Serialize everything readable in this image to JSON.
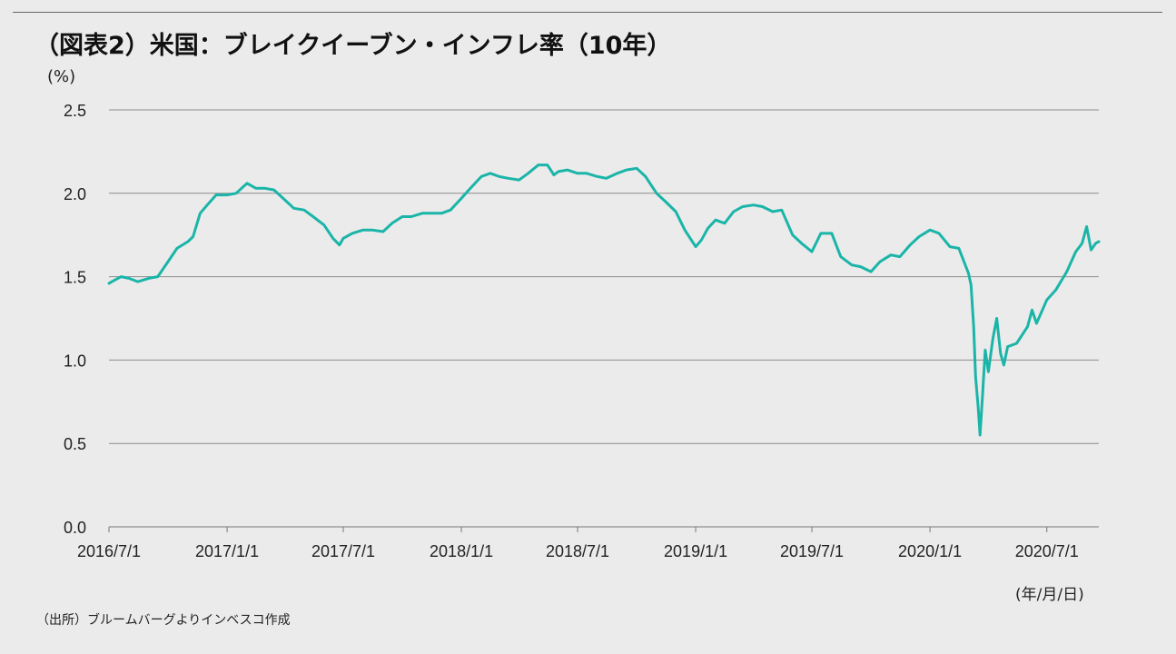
{
  "header": {
    "title": "（図表2）米国：ブレイクイーブン・インフレ率（10年）"
  },
  "footer": {
    "source": "（出所）ブルームバーグよりインベスコ作成"
  },
  "chart_data": {
    "type": "line",
    "title": "（図表2）米国：ブレイクイーブン・インフレ率（10年）",
    "ylabel": "(%)",
    "xlabel": "(年/月/日)",
    "ylim": [
      0,
      2.5
    ],
    "yticks": [
      "0.0",
      "0.5",
      "1.0",
      "1.5",
      "2.0",
      "2.5"
    ],
    "xlim": [
      "2016-07-01",
      "2020-09-20"
    ],
    "xticks": [
      {
        "label": "2016/7/1",
        "date": "2016-07-01"
      },
      {
        "label": "2017/1/1",
        "date": "2017-01-01"
      },
      {
        "label": "2017/7/1",
        "date": "2017-07-01"
      },
      {
        "label": "2018/1/1",
        "date": "2018-01-01"
      },
      {
        "label": "2018/7/1",
        "date": "2018-07-01"
      },
      {
        "label": "2019/1/1",
        "date": "2019-01-01"
      },
      {
        "label": "2019/7/1",
        "date": "2019-07-01"
      },
      {
        "label": "2020/1/1",
        "date": "2020-01-01"
      },
      {
        "label": "2020/7/1",
        "date": "2020-07-01"
      }
    ],
    "grid": true,
    "line_color": "#1ab5a8",
    "series": [
      {
        "name": "ブレイクイーブン・インフレ率（10年）",
        "points": [
          [
            "2016-07-01",
            1.46
          ],
          [
            "2016-07-10",
            1.48
          ],
          [
            "2016-07-20",
            1.5
          ],
          [
            "2016-08-01",
            1.49
          ],
          [
            "2016-08-15",
            1.47
          ],
          [
            "2016-09-01",
            1.49
          ],
          [
            "2016-09-15",
            1.5
          ],
          [
            "2016-10-01",
            1.59
          ],
          [
            "2016-10-15",
            1.67
          ],
          [
            "2016-11-01",
            1.71
          ],
          [
            "2016-11-09",
            1.74
          ],
          [
            "2016-11-20",
            1.88
          ],
          [
            "2016-12-01",
            1.93
          ],
          [
            "2016-12-15",
            1.99
          ],
          [
            "2017-01-01",
            1.99
          ],
          [
            "2017-01-15",
            2.0
          ],
          [
            "2017-02-01",
            2.06
          ],
          [
            "2017-02-15",
            2.03
          ],
          [
            "2017-03-01",
            2.03
          ],
          [
            "2017-03-15",
            2.02
          ],
          [
            "2017-04-01",
            1.96
          ],
          [
            "2017-04-15",
            1.91
          ],
          [
            "2017-05-01",
            1.9
          ],
          [
            "2017-05-15",
            1.86
          ],
          [
            "2017-06-01",
            1.81
          ],
          [
            "2017-06-15",
            1.73
          ],
          [
            "2017-06-25",
            1.69
          ],
          [
            "2017-07-01",
            1.73
          ],
          [
            "2017-07-15",
            1.76
          ],
          [
            "2017-08-01",
            1.78
          ],
          [
            "2017-08-15",
            1.78
          ],
          [
            "2017-09-01",
            1.77
          ],
          [
            "2017-09-15",
            1.82
          ],
          [
            "2017-10-01",
            1.86
          ],
          [
            "2017-10-15",
            1.86
          ],
          [
            "2017-11-01",
            1.88
          ],
          [
            "2017-11-15",
            1.88
          ],
          [
            "2017-12-01",
            1.88
          ],
          [
            "2017-12-15",
            1.9
          ],
          [
            "2018-01-01",
            1.97
          ],
          [
            "2018-01-15",
            2.03
          ],
          [
            "2018-02-01",
            2.1
          ],
          [
            "2018-02-15",
            2.12
          ],
          [
            "2018-03-01",
            2.1
          ],
          [
            "2018-03-15",
            2.09
          ],
          [
            "2018-04-01",
            2.08
          ],
          [
            "2018-04-15",
            2.12
          ],
          [
            "2018-05-01",
            2.17
          ],
          [
            "2018-05-15",
            2.17
          ],
          [
            "2018-05-25",
            2.11
          ],
          [
            "2018-06-01",
            2.13
          ],
          [
            "2018-06-15",
            2.14
          ],
          [
            "2018-07-01",
            2.12
          ],
          [
            "2018-07-15",
            2.12
          ],
          [
            "2018-08-01",
            2.1
          ],
          [
            "2018-08-15",
            2.09
          ],
          [
            "2018-09-01",
            2.12
          ],
          [
            "2018-09-15",
            2.14
          ],
          [
            "2018-10-01",
            2.15
          ],
          [
            "2018-10-15",
            2.1
          ],
          [
            "2018-11-01",
            2.0
          ],
          [
            "2018-11-15",
            1.95
          ],
          [
            "2018-12-01",
            1.89
          ],
          [
            "2018-12-15",
            1.78
          ],
          [
            "2019-01-01",
            1.68
          ],
          [
            "2019-01-10",
            1.72
          ],
          [
            "2019-01-20",
            1.79
          ],
          [
            "2019-02-01",
            1.84
          ],
          [
            "2019-02-15",
            1.82
          ],
          [
            "2019-03-01",
            1.89
          ],
          [
            "2019-03-15",
            1.92
          ],
          [
            "2019-04-01",
            1.93
          ],
          [
            "2019-04-15",
            1.92
          ],
          [
            "2019-05-01",
            1.89
          ],
          [
            "2019-05-15",
            1.9
          ],
          [
            "2019-06-01",
            1.75
          ],
          [
            "2019-06-15",
            1.7
          ],
          [
            "2019-07-01",
            1.65
          ],
          [
            "2019-07-15",
            1.76
          ],
          [
            "2019-08-01",
            1.76
          ],
          [
            "2019-08-15",
            1.62
          ],
          [
            "2019-09-01",
            1.57
          ],
          [
            "2019-09-15",
            1.56
          ],
          [
            "2019-10-01",
            1.53
          ],
          [
            "2019-10-15",
            1.59
          ],
          [
            "2019-11-01",
            1.63
          ],
          [
            "2019-11-15",
            1.62
          ],
          [
            "2019-12-01",
            1.69
          ],
          [
            "2019-12-15",
            1.74
          ],
          [
            "2020-01-01",
            1.78
          ],
          [
            "2020-01-15",
            1.76
          ],
          [
            "2020-02-01",
            1.68
          ],
          [
            "2020-02-15",
            1.67
          ],
          [
            "2020-03-01",
            1.52
          ],
          [
            "2020-03-05",
            1.45
          ],
          [
            "2020-03-09",
            1.2
          ],
          [
            "2020-03-12",
            0.9
          ],
          [
            "2020-03-16",
            0.72
          ],
          [
            "2020-03-19",
            0.55
          ],
          [
            "2020-03-23",
            0.8
          ],
          [
            "2020-03-27",
            1.06
          ],
          [
            "2020-04-01",
            0.93
          ],
          [
            "2020-04-08",
            1.13
          ],
          [
            "2020-04-14",
            1.25
          ],
          [
            "2020-04-20",
            1.04
          ],
          [
            "2020-04-25",
            0.97
          ],
          [
            "2020-05-01",
            1.08
          ],
          [
            "2020-05-15",
            1.1
          ],
          [
            "2020-06-01",
            1.2
          ],
          [
            "2020-06-08",
            1.3
          ],
          [
            "2020-06-15",
            1.22
          ],
          [
            "2020-07-01",
            1.36
          ],
          [
            "2020-07-15",
            1.42
          ],
          [
            "2020-08-01",
            1.53
          ],
          [
            "2020-08-15",
            1.65
          ],
          [
            "2020-08-25",
            1.7
          ],
          [
            "2020-09-01",
            1.8
          ],
          [
            "2020-09-08",
            1.66
          ],
          [
            "2020-09-15",
            1.7
          ],
          [
            "2020-09-20",
            1.71
          ]
        ]
      }
    ]
  }
}
